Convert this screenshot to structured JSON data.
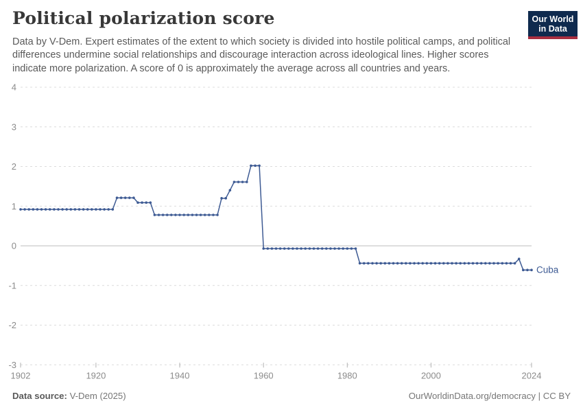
{
  "header": {
    "title": "Political polarization score",
    "subtitle": "Data by V-Dem. Expert estimates of the extent to which society is divided into hostile political camps, and political differences undermine social relationships and discourage interaction across ideological lines. Higher scores indicate more polarization. A score of 0 is approximately the average across all countries and years.",
    "logo_line1": "Our World",
    "logo_line2": "in Data"
  },
  "chart_data": {
    "type": "line",
    "title": "Political polarization score",
    "entity_label": "Cuba",
    "xlim": [
      1902,
      2024
    ],
    "ylim": [
      -3,
      4
    ],
    "x_ticks": [
      1902,
      1920,
      1940,
      1960,
      1980,
      2000,
      2024
    ],
    "y_ticks": [
      4,
      3,
      2,
      1,
      0,
      -1,
      -2,
      -3
    ],
    "grid": "horizontal-dashed",
    "legend_position": "end-of-line",
    "series": [
      {
        "name": "Cuba",
        "points": [
          [
            1902,
            0.92
          ],
          [
            1903,
            0.92
          ],
          [
            1904,
            0.92
          ],
          [
            1905,
            0.92
          ],
          [
            1906,
            0.92
          ],
          [
            1907,
            0.92
          ],
          [
            1908,
            0.92
          ],
          [
            1909,
            0.92
          ],
          [
            1910,
            0.92
          ],
          [
            1911,
            0.92
          ],
          [
            1912,
            0.92
          ],
          [
            1913,
            0.92
          ],
          [
            1914,
            0.92
          ],
          [
            1915,
            0.92
          ],
          [
            1916,
            0.92
          ],
          [
            1917,
            0.92
          ],
          [
            1918,
            0.92
          ],
          [
            1919,
            0.92
          ],
          [
            1920,
            0.92
          ],
          [
            1921,
            0.92
          ],
          [
            1922,
            0.92
          ],
          [
            1923,
            0.92
          ],
          [
            1924,
            0.92
          ],
          [
            1925,
            1.21
          ],
          [
            1926,
            1.21
          ],
          [
            1927,
            1.21
          ],
          [
            1928,
            1.21
          ],
          [
            1929,
            1.21
          ],
          [
            1930,
            1.09
          ],
          [
            1931,
            1.09
          ],
          [
            1932,
            1.09
          ],
          [
            1933,
            1.09
          ],
          [
            1934,
            0.78
          ],
          [
            1935,
            0.78
          ],
          [
            1936,
            0.78
          ],
          [
            1937,
            0.78
          ],
          [
            1938,
            0.78
          ],
          [
            1939,
            0.78
          ],
          [
            1940,
            0.78
          ],
          [
            1941,
            0.78
          ],
          [
            1942,
            0.78
          ],
          [
            1943,
            0.78
          ],
          [
            1944,
            0.78
          ],
          [
            1945,
            0.78
          ],
          [
            1946,
            0.78
          ],
          [
            1947,
            0.78
          ],
          [
            1948,
            0.78
          ],
          [
            1949,
            0.78
          ],
          [
            1950,
            1.2
          ],
          [
            1951,
            1.2
          ],
          [
            1952,
            1.4
          ],
          [
            1953,
            1.61
          ],
          [
            1954,
            1.61
          ],
          [
            1955,
            1.61
          ],
          [
            1956,
            1.61
          ],
          [
            1957,
            2.02
          ],
          [
            1958,
            2.02
          ],
          [
            1959,
            2.02
          ],
          [
            1960,
            -0.07
          ],
          [
            1961,
            -0.07
          ],
          [
            1962,
            -0.07
          ],
          [
            1963,
            -0.07
          ],
          [
            1964,
            -0.07
          ],
          [
            1965,
            -0.07
          ],
          [
            1966,
            -0.07
          ],
          [
            1967,
            -0.07
          ],
          [
            1968,
            -0.07
          ],
          [
            1969,
            -0.07
          ],
          [
            1970,
            -0.07
          ],
          [
            1971,
            -0.07
          ],
          [
            1972,
            -0.07
          ],
          [
            1973,
            -0.07
          ],
          [
            1974,
            -0.07
          ],
          [
            1975,
            -0.07
          ],
          [
            1976,
            -0.07
          ],
          [
            1977,
            -0.07
          ],
          [
            1978,
            -0.07
          ],
          [
            1979,
            -0.07
          ],
          [
            1980,
            -0.07
          ],
          [
            1981,
            -0.07
          ],
          [
            1982,
            -0.07
          ],
          [
            1983,
            -0.44
          ],
          [
            1984,
            -0.44
          ],
          [
            1985,
            -0.44
          ],
          [
            1986,
            -0.44
          ],
          [
            1987,
            -0.44
          ],
          [
            1988,
            -0.44
          ],
          [
            1989,
            -0.44
          ],
          [
            1990,
            -0.44
          ],
          [
            1991,
            -0.44
          ],
          [
            1992,
            -0.44
          ],
          [
            1993,
            -0.44
          ],
          [
            1994,
            -0.44
          ],
          [
            1995,
            -0.44
          ],
          [
            1996,
            -0.44
          ],
          [
            1997,
            -0.44
          ],
          [
            1998,
            -0.44
          ],
          [
            1999,
            -0.44
          ],
          [
            2000,
            -0.44
          ],
          [
            2001,
            -0.44
          ],
          [
            2002,
            -0.44
          ],
          [
            2003,
            -0.44
          ],
          [
            2004,
            -0.44
          ],
          [
            2005,
            -0.44
          ],
          [
            2006,
            -0.44
          ],
          [
            2007,
            -0.44
          ],
          [
            2008,
            -0.44
          ],
          [
            2009,
            -0.44
          ],
          [
            2010,
            -0.44
          ],
          [
            2011,
            -0.44
          ],
          [
            2012,
            -0.44
          ],
          [
            2013,
            -0.44
          ],
          [
            2014,
            -0.44
          ],
          [
            2015,
            -0.44
          ],
          [
            2016,
            -0.44
          ],
          [
            2017,
            -0.44
          ],
          [
            2018,
            -0.44
          ],
          [
            2019,
            -0.44
          ],
          [
            2020,
            -0.44
          ],
          [
            2021,
            -0.33
          ],
          [
            2022,
            -0.61
          ],
          [
            2023,
            -0.61
          ],
          [
            2024,
            -0.61
          ]
        ]
      }
    ],
    "colors": {
      "line": "#3d5a93",
      "grid": "#dcdcdc",
      "zero_line": "#bcbcbc",
      "tick_label": "#8b8b8b",
      "tick_mark": "#b0b0b0"
    }
  },
  "footer": {
    "datasource_label": "Data source:",
    "datasource_value": "V-Dem (2025)",
    "rights": "OurWorldinData.org/democracy | CC BY"
  }
}
